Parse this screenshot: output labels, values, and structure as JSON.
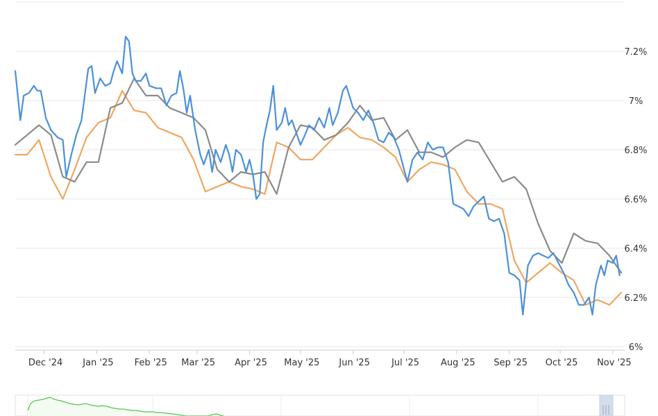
{
  "chart_data": {
    "type": "line",
    "title": "",
    "xlabel": "",
    "ylabel": "",
    "x_tick_labels": [
      "Dec '24",
      "Jan '25",
      "Feb '25",
      "Mar '25",
      "Apr '25",
      "May '25",
      "Jun '25",
      "Jul '25",
      "Aug '25",
      "Sep '25",
      "Oct '25",
      "Nov '25"
    ],
    "y_tick_labels": [
      "6%",
      "6.2%",
      "6.4%",
      "6.6%",
      "6.8%",
      "7%",
      "7.2%"
    ],
    "y_ticks": [
      6.0,
      6.2,
      6.4,
      6.6,
      6.8,
      7.0,
      7.2
    ],
    "ylim": [
      6.0,
      7.2
    ],
    "xlim": [
      "2024-11-14",
      "2025-11-08"
    ],
    "grid": true,
    "legend": "none",
    "series": [
      {
        "color": "#4a90d9",
        "points": [
          [
            "2024-11-14",
            7.12
          ],
          [
            "2024-11-17",
            6.92
          ],
          [
            "2024-11-19",
            7.02
          ],
          [
            "2024-11-22",
            7.03
          ],
          [
            "2024-11-25",
            7.06
          ],
          [
            "2024-11-27",
            7.04
          ],
          [
            "2024-11-29",
            7.04
          ],
          [
            "2024-12-02",
            6.93
          ],
          [
            "2024-12-05",
            6.88
          ],
          [
            "2024-12-09",
            6.85
          ],
          [
            "2024-12-12",
            6.84
          ],
          [
            "2024-12-14",
            6.69
          ],
          [
            "2024-12-17",
            6.78
          ],
          [
            "2024-12-20",
            6.86
          ],
          [
            "2024-12-23",
            6.92
          ],
          [
            "2024-12-27",
            7.13
          ],
          [
            "2024-12-29",
            7.14
          ],
          [
            "2024-12-31",
            7.03
          ],
          [
            "2025-01-03",
            7.09
          ],
          [
            "2025-01-06",
            7.06
          ],
          [
            "2025-01-09",
            7.07
          ],
          [
            "2025-01-11",
            7.12
          ],
          [
            "2025-01-13",
            7.16
          ],
          [
            "2025-01-16",
            7.11
          ],
          [
            "2025-01-18",
            7.26
          ],
          [
            "2025-01-20",
            7.24
          ],
          [
            "2025-01-22",
            7.11
          ],
          [
            "2025-01-24",
            7.08
          ],
          [
            "2025-01-27",
            7.08
          ],
          [
            "2025-01-30",
            7.11
          ],
          [
            "2025-02-01",
            7.06
          ],
          [
            "2025-02-05",
            7.05
          ],
          [
            "2025-02-08",
            7.05
          ],
          [
            "2025-02-11",
            6.98
          ],
          [
            "2025-02-14",
            7.02
          ],
          [
            "2025-02-17",
            7.03
          ],
          [
            "2025-02-19",
            7.12
          ],
          [
            "2025-02-21",
            7.05
          ],
          [
            "2025-02-23",
            6.95
          ],
          [
            "2025-02-25",
            7.02
          ],
          [
            "2025-02-28",
            6.88
          ],
          [
            "2025-03-03",
            6.78
          ],
          [
            "2025-03-05",
            6.74
          ],
          [
            "2025-03-08",
            6.8
          ],
          [
            "2025-03-10",
            6.71
          ],
          [
            "2025-03-12",
            6.8
          ],
          [
            "2025-03-15",
            6.75
          ],
          [
            "2025-03-18",
            6.82
          ],
          [
            "2025-03-20",
            6.78
          ],
          [
            "2025-03-22",
            6.71
          ],
          [
            "2025-03-24",
            6.8
          ],
          [
            "2025-03-27",
            6.78
          ],
          [
            "2025-03-30",
            6.71
          ],
          [
            "2025-04-01",
            6.76
          ],
          [
            "2025-04-03",
            6.7
          ],
          [
            "2025-04-05",
            6.6
          ],
          [
            "2025-04-07",
            6.62
          ],
          [
            "2025-04-09",
            6.83
          ],
          [
            "2025-04-11",
            6.9
          ],
          [
            "2025-04-13",
            6.96
          ],
          [
            "2025-04-15",
            7.06
          ],
          [
            "2025-04-17",
            6.88
          ],
          [
            "2025-04-20",
            6.91
          ],
          [
            "2025-04-22",
            6.97
          ],
          [
            "2025-04-24",
            6.9
          ],
          [
            "2025-04-26",
            6.92
          ],
          [
            "2025-04-28",
            6.88
          ],
          [
            "2025-05-01",
            6.82
          ],
          [
            "2025-05-03",
            6.85
          ],
          [
            "2025-05-06",
            6.9
          ],
          [
            "2025-05-09",
            6.88
          ],
          [
            "2025-05-12",
            6.93
          ],
          [
            "2025-05-15",
            6.89
          ],
          [
            "2025-05-18",
            6.97
          ],
          [
            "2025-05-20",
            6.9
          ],
          [
            "2025-05-23",
            6.95
          ],
          [
            "2025-05-26",
            7.04
          ],
          [
            "2025-05-28",
            7.06
          ],
          [
            "2025-06-01",
            6.97
          ],
          [
            "2025-06-04",
            6.95
          ],
          [
            "2025-06-07",
            6.92
          ],
          [
            "2025-06-10",
            6.96
          ],
          [
            "2025-06-13",
            6.91
          ],
          [
            "2025-06-16",
            6.84
          ],
          [
            "2025-06-19",
            6.83
          ],
          [
            "2025-06-22",
            6.87
          ],
          [
            "2025-06-25",
            6.85
          ],
          [
            "2025-06-28",
            6.8
          ],
          [
            "2025-07-01",
            6.72
          ],
          [
            "2025-07-03",
            6.67
          ],
          [
            "2025-07-06",
            6.76
          ],
          [
            "2025-07-09",
            6.79
          ],
          [
            "2025-07-12",
            6.76
          ],
          [
            "2025-07-15",
            6.83
          ],
          [
            "2025-07-18",
            6.8
          ],
          [
            "2025-07-21",
            6.81
          ],
          [
            "2025-07-24",
            6.81
          ],
          [
            "2025-07-27",
            6.75
          ],
          [
            "2025-07-30",
            6.58
          ],
          [
            "2025-08-02",
            6.57
          ],
          [
            "2025-08-05",
            6.56
          ],
          [
            "2025-08-08",
            6.53
          ],
          [
            "2025-08-11",
            6.57
          ],
          [
            "2025-08-14",
            6.59
          ],
          [
            "2025-08-17",
            6.61
          ],
          [
            "2025-08-20",
            6.52
          ],
          [
            "2025-08-23",
            6.51
          ],
          [
            "2025-08-26",
            6.52
          ],
          [
            "2025-08-29",
            6.46
          ],
          [
            "2025-09-01",
            6.3
          ],
          [
            "2025-09-04",
            6.29
          ],
          [
            "2025-09-07",
            6.27
          ],
          [
            "2025-09-09",
            6.13
          ],
          [
            "2025-09-12",
            6.33
          ],
          [
            "2025-09-15",
            6.37
          ],
          [
            "2025-09-18",
            6.38
          ],
          [
            "2025-09-21",
            6.37
          ],
          [
            "2025-09-24",
            6.36
          ],
          [
            "2025-09-27",
            6.38
          ],
          [
            "2025-09-30",
            6.34
          ],
          [
            "2025-10-03",
            6.3
          ],
          [
            "2025-10-06",
            6.25
          ],
          [
            "2025-10-09",
            6.22
          ],
          [
            "2025-10-12",
            6.17
          ],
          [
            "2025-10-15",
            6.17
          ],
          [
            "2025-10-18",
            6.2
          ],
          [
            "2025-10-20",
            6.13
          ],
          [
            "2025-10-22",
            6.25
          ],
          [
            "2025-10-25",
            6.33
          ],
          [
            "2025-10-27",
            6.29
          ],
          [
            "2025-10-29",
            6.35
          ],
          [
            "2025-11-01",
            6.34
          ],
          [
            "2025-11-03",
            6.37
          ],
          [
            "2025-11-05",
            6.29
          ]
        ]
      },
      {
        "color": "#f0a660",
        "points": [
          [
            "2024-11-14",
            6.78
          ],
          [
            "2024-11-21",
            6.78
          ],
          [
            "2024-11-28",
            6.84
          ],
          [
            "2024-12-05",
            6.69
          ],
          [
            "2024-12-12",
            6.6
          ],
          [
            "2024-12-19",
            6.72
          ],
          [
            "2024-12-26",
            6.85
          ],
          [
            "2025-01-02",
            6.91
          ],
          [
            "2025-01-09",
            6.93
          ],
          [
            "2025-01-16",
            7.04
          ],
          [
            "2025-01-23",
            6.96
          ],
          [
            "2025-01-30",
            6.95
          ],
          [
            "2025-02-06",
            6.89
          ],
          [
            "2025-02-13",
            6.87
          ],
          [
            "2025-02-20",
            6.85
          ],
          [
            "2025-02-27",
            6.76
          ],
          [
            "2025-03-06",
            6.63
          ],
          [
            "2025-03-13",
            6.65
          ],
          [
            "2025-03-20",
            6.67
          ],
          [
            "2025-03-27",
            6.65
          ],
          [
            "2025-04-03",
            6.64
          ],
          [
            "2025-04-10",
            6.62
          ],
          [
            "2025-04-17",
            6.83
          ],
          [
            "2025-04-24",
            6.81
          ],
          [
            "2025-05-01",
            6.76
          ],
          [
            "2025-05-08",
            6.76
          ],
          [
            "2025-05-15",
            6.81
          ],
          [
            "2025-05-22",
            6.86
          ],
          [
            "2025-05-29",
            6.89
          ],
          [
            "2025-06-05",
            6.85
          ],
          [
            "2025-06-12",
            6.84
          ],
          [
            "2025-06-19",
            6.81
          ],
          [
            "2025-06-26",
            6.77
          ],
          [
            "2025-07-03",
            6.67
          ],
          [
            "2025-07-10",
            6.72
          ],
          [
            "2025-07-17",
            6.75
          ],
          [
            "2025-07-24",
            6.74
          ],
          [
            "2025-07-31",
            6.72
          ],
          [
            "2025-08-07",
            6.63
          ],
          [
            "2025-08-14",
            6.58
          ],
          [
            "2025-08-21",
            6.58
          ],
          [
            "2025-08-28",
            6.56
          ],
          [
            "2025-09-04",
            6.35
          ],
          [
            "2025-09-11",
            6.26
          ],
          [
            "2025-09-18",
            6.3
          ],
          [
            "2025-09-25",
            6.34
          ],
          [
            "2025-10-02",
            6.3
          ],
          [
            "2025-10-09",
            6.27
          ],
          [
            "2025-10-16",
            6.17
          ],
          [
            "2025-10-23",
            6.19
          ],
          [
            "2025-10-30",
            6.17
          ],
          [
            "2025-11-06",
            6.22
          ]
        ]
      },
      {
        "color": "#8a8a8a",
        "points": [
          [
            "2024-11-14",
            6.82
          ],
          [
            "2024-11-21",
            6.86
          ],
          [
            "2024-11-28",
            6.9
          ],
          [
            "2024-12-05",
            6.86
          ],
          [
            "2024-12-12",
            6.69
          ],
          [
            "2024-12-19",
            6.67
          ],
          [
            "2024-12-26",
            6.75
          ],
          [
            "2025-01-02",
            6.75
          ],
          [
            "2025-01-09",
            6.97
          ],
          [
            "2025-01-16",
            6.99
          ],
          [
            "2025-01-23",
            7.09
          ],
          [
            "2025-01-30",
            7.02
          ],
          [
            "2025-02-06",
            7.02
          ],
          [
            "2025-02-13",
            6.97
          ],
          [
            "2025-02-20",
            6.95
          ],
          [
            "2025-02-27",
            6.93
          ],
          [
            "2025-03-06",
            6.88
          ],
          [
            "2025-03-13",
            6.72
          ],
          [
            "2025-03-20",
            6.67
          ],
          [
            "2025-03-27",
            6.71
          ],
          [
            "2025-04-03",
            6.7
          ],
          [
            "2025-04-10",
            6.71
          ],
          [
            "2025-04-17",
            6.62
          ],
          [
            "2025-04-24",
            6.81
          ],
          [
            "2025-05-01",
            6.9
          ],
          [
            "2025-05-08",
            6.89
          ],
          [
            "2025-05-15",
            6.84
          ],
          [
            "2025-05-22",
            6.86
          ],
          [
            "2025-05-29",
            6.91
          ],
          [
            "2025-06-05",
            6.98
          ],
          [
            "2025-06-12",
            6.92
          ],
          [
            "2025-06-19",
            6.93
          ],
          [
            "2025-06-26",
            6.84
          ],
          [
            "2025-07-03",
            6.88
          ],
          [
            "2025-07-10",
            6.79
          ],
          [
            "2025-07-17",
            6.79
          ],
          [
            "2025-07-24",
            6.77
          ],
          [
            "2025-07-31",
            6.81
          ],
          [
            "2025-08-07",
            6.84
          ],
          [
            "2025-08-14",
            6.83
          ],
          [
            "2025-08-21",
            6.75
          ],
          [
            "2025-08-28",
            6.67
          ],
          [
            "2025-09-04",
            6.69
          ],
          [
            "2025-09-11",
            6.64
          ],
          [
            "2025-09-18",
            6.5
          ],
          [
            "2025-09-25",
            6.39
          ],
          [
            "2025-10-02",
            6.34
          ],
          [
            "2025-10-09",
            6.46
          ],
          [
            "2025-10-16",
            6.43
          ],
          [
            "2025-10-23",
            6.42
          ],
          [
            "2025-10-30",
            6.37
          ],
          [
            "2025-11-06",
            6.3
          ]
        ]
      }
    ]
  },
  "navigator": {
    "colors": {
      "line": "#57c154",
      "fill": "#f4fbf1",
      "handle": "#d3ddeb"
    }
  }
}
